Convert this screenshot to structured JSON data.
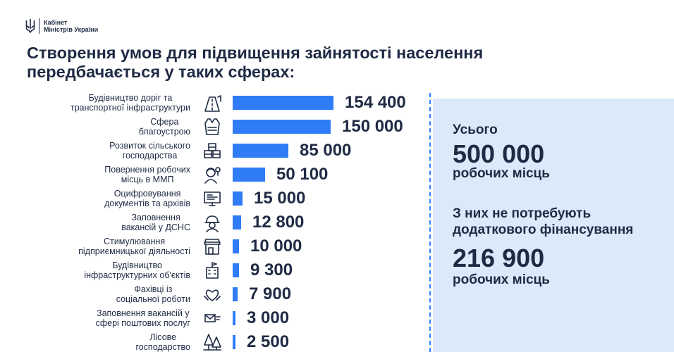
{
  "logo": {
    "line1": "Кабінет",
    "line2": "Міністрів України"
  },
  "title": {
    "line1": "Створення умов для підвищення зайнятості населення",
    "line2": "передбачається у таких сферах:"
  },
  "chart_data": {
    "type": "bar",
    "orientation": "horizontal",
    "categories": [
      "Будівництво доріг та\nтранспортної інфраструктури",
      "Сфера\nблагоустрою",
      "Розвиток сільського\nгосподарства",
      "Повернення робочих\nмісць в ММП",
      "Оцифровування\nдокументів та архівів",
      "Заповнення\nвакансій у ДСНС",
      "Стимулювання\nпідприємницької діяльності",
      "Будівництво\nінфраструктурних об'єктів",
      "Фахівці із\nсоціальної роботи",
      "Заповнення вакансій у\nсфері поштових послуг",
      "Лісове\nгосподарство"
    ],
    "values": [
      154400,
      150000,
      85000,
      50100,
      15000,
      12800,
      10000,
      9300,
      7900,
      3000,
      2500
    ],
    "value_labels": [
      "154 400",
      "150 000",
      "85 000",
      "50 100",
      "15 000",
      "12 800",
      "10 000",
      "9 300",
      "7 900",
      "3 000",
      "2 500"
    ],
    "icons": [
      "road-construction-icon",
      "safety-vest-icon",
      "agriculture-crates-icon",
      "worker-headset-icon",
      "digitization-monitor-icon",
      "rescuer-helmet-icon",
      "shop-storefront-icon",
      "building-flag-icon",
      "social-care-hands-icon",
      "postal-mail-icon",
      "forest-trees-icon"
    ],
    "bar_color": "#2f7cf6"
  },
  "summary": {
    "total_label": "Усього",
    "total_value": "500 000",
    "total_unit": "робочих місць",
    "sub_label_line1": "З них не потребують",
    "sub_label_line2": "додаткового фінансування",
    "sub_value": "216 900",
    "sub_unit": "робочих місць"
  },
  "colors": {
    "accent": "#2f7cf6",
    "panel": "#dbe9fb",
    "text": "#1f2a44"
  }
}
